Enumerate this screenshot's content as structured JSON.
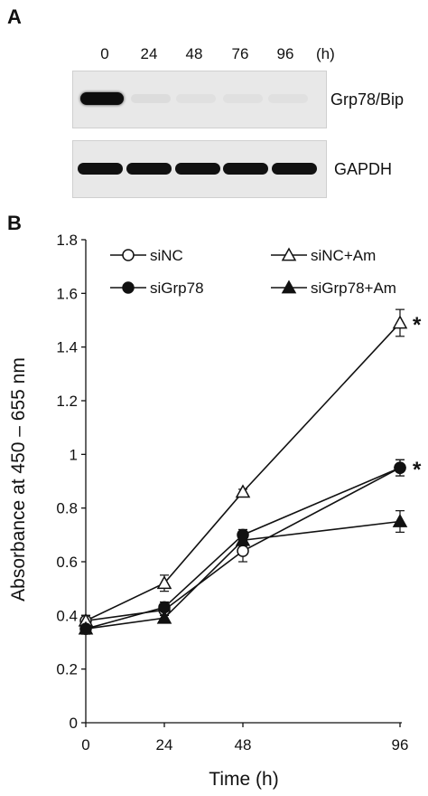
{
  "panel_a": {
    "letter": "A",
    "lanes": [
      "0",
      "24",
      "48",
      "76",
      "96"
    ],
    "unit": "(h)",
    "blots": [
      {
        "label": "Grp78/Bip",
        "band_intensity": [
          1.0,
          0.04,
          0.02,
          0.02,
          0.02
        ]
      },
      {
        "label": "GAPDH",
        "band_intensity": [
          1.0,
          1.0,
          1.0,
          1.0,
          1.0
        ]
      }
    ]
  },
  "panel_b": {
    "letter": "B"
  },
  "chart_data": {
    "type": "line",
    "xlabel": "Time (h)",
    "ylabel": "Absorbance at 450 – 655 nm",
    "x": [
      0,
      24,
      48,
      96
    ],
    "x_ticks": [
      "0",
      "24",
      "48",
      "96"
    ],
    "ylim": [
      0,
      1.8
    ],
    "y_ticks": [
      "0",
      "0.2",
      "0.4",
      "0.6",
      "0.8",
      "1",
      "1.2",
      "1.4",
      "1.6",
      "1.8"
    ],
    "grid": false,
    "legend": "top",
    "series": [
      {
        "name": "siNC",
        "marker": "circle-open",
        "values": [
          0.38,
          0.42,
          0.64,
          0.95
        ],
        "errors": [
          0.02,
          0.02,
          0.04,
          0.03
        ]
      },
      {
        "name": "siNC+Am",
        "marker": "triangle-open",
        "values": [
          0.38,
          0.52,
          0.86,
          1.49
        ],
        "errors": [
          0.02,
          0.03,
          0.01,
          0.05
        ]
      },
      {
        "name": "siGrp78",
        "marker": "circle-filled",
        "values": [
          0.35,
          0.43,
          0.7,
          0.95
        ],
        "errors": [
          0.02,
          0.02,
          0.02,
          0.03
        ]
      },
      {
        "name": "siGrp78+Am",
        "marker": "triangle-filled",
        "values": [
          0.35,
          0.39,
          0.68,
          0.75
        ],
        "errors": [
          0.01,
          0.01,
          0.02,
          0.04
        ]
      }
    ],
    "annotations": [
      {
        "text": "*",
        "x": 96,
        "y": 1.49
      },
      {
        "text": "*",
        "x": 96,
        "y": 0.95
      }
    ]
  }
}
